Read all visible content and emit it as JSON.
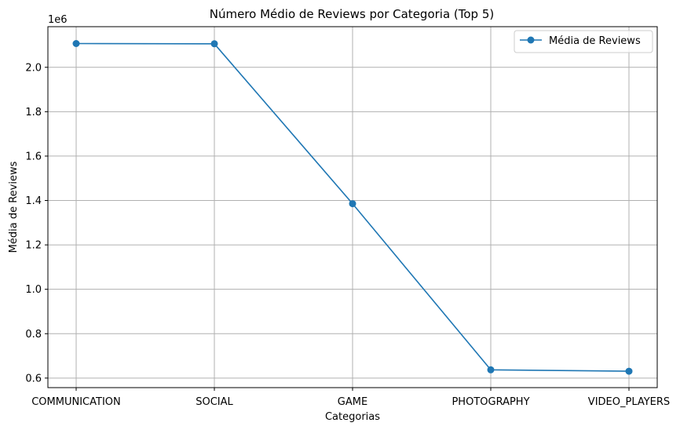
{
  "chart_data": {
    "type": "line",
    "title": "Número Médio de Reviews por Categoria (Top 5)",
    "xlabel": "Categorias",
    "ylabel": "Média de Reviews",
    "y_offset_label": "1e6",
    "categories": [
      "COMMUNICATION",
      "SOCIAL",
      "GAME",
      "PHOTOGRAPHY",
      "VIDEO_PLAYERS"
    ],
    "series": [
      {
        "name": "Média de Reviews",
        "values": [
          2107138,
          2105903,
          1385431,
          637363,
          630744
        ],
        "color": "#1f77b4",
        "marker": "circle"
      }
    ],
    "ylim": [
      0.557,
      2.183
    ],
    "y_scale_factor": 1000000,
    "yticks": [
      0.6,
      0.8,
      1.0,
      1.2,
      1.4,
      1.6,
      1.8,
      2.0
    ],
    "ytick_labels": [
      "0.6",
      "0.8",
      "1.0",
      "1.2",
      "1.4",
      "1.6",
      "1.8",
      "2.0"
    ],
    "grid": true,
    "legend_position": "top-right"
  }
}
